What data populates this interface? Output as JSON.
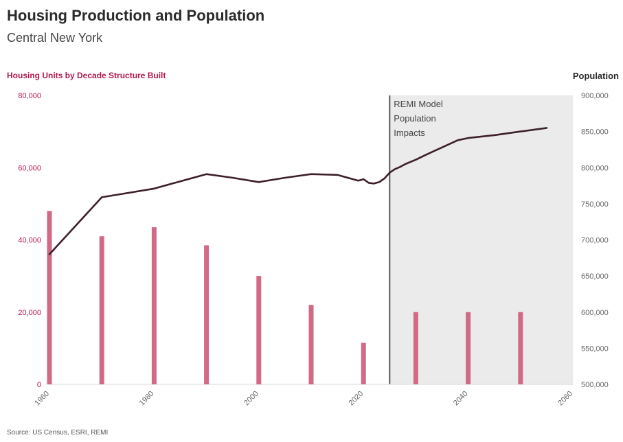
{
  "header": {
    "title": "Housing Production and Population",
    "subtitle": "Central New York"
  },
  "source": "Source: US Census, ESRI, REMI",
  "colors": {
    "bar": "#d26a85",
    "line": "#3d1f28",
    "left_axis": "#b5164b",
    "shade": "#ebebeb",
    "divider": "#555555"
  },
  "chart_data": {
    "type": "bar",
    "left_axis": {
      "label": "Housing Units by Decade Structure Built",
      "ylim": [
        0,
        80000
      ],
      "ticks": [
        0,
        20000,
        40000,
        60000,
        80000
      ],
      "tick_labels": [
        "0",
        "20,000",
        "40,000",
        "60,000",
        "80,000"
      ]
    },
    "right_axis": {
      "label": "Population",
      "ylim": [
        500000,
        900000
      ],
      "ticks": [
        500000,
        550000,
        600000,
        650000,
        700000,
        750000,
        800000,
        850000,
        900000
      ],
      "tick_labels": [
        "500,000",
        "550,000",
        "600,000",
        "650,000",
        "700,000",
        "750,000",
        "800,000",
        "850,000",
        "900,000"
      ]
    },
    "x_axis": {
      "xlim": [
        1960,
        2060
      ],
      "ticks": [
        1960,
        1980,
        2000,
        2020,
        2040,
        2060
      ],
      "tick_labels": [
        "1960",
        "1980",
        "2000",
        "2020",
        "2040",
        "2060"
      ]
    },
    "bars": {
      "x": [
        1960,
        1970,
        1980,
        1990,
        2000,
        2010,
        2020,
        2030,
        2040,
        2050
      ],
      "values": [
        48000,
        41000,
        43500,
        38500,
        30000,
        22000,
        11500,
        20000,
        20000,
        20000
      ]
    },
    "population": {
      "x": [
        1960,
        1970,
        1975,
        1980,
        1985,
        1990,
        1995,
        2000,
        2005,
        2010,
        2015,
        2019,
        2020,
        2021,
        2022,
        2023,
        2024,
        2025,
        2026,
        2027,
        2028,
        2030,
        2032,
        2035,
        2038,
        2040,
        2045,
        2050,
        2055
      ],
      "values": [
        680000,
        759000,
        765000,
        771000,
        781000,
        791000,
        786000,
        780000,
        786000,
        791000,
        790000,
        782000,
        784000,
        779000,
        778000,
        780000,
        785000,
        793000,
        798000,
        801000,
        805000,
        811000,
        818000,
        828000,
        838000,
        841000,
        845000,
        850000,
        855000
      ]
    },
    "shaded_region": {
      "x_range": [
        2025,
        2060
      ],
      "label_lines": [
        "REMI Model",
        "Population",
        "Impacts"
      ]
    },
    "grid": false
  }
}
